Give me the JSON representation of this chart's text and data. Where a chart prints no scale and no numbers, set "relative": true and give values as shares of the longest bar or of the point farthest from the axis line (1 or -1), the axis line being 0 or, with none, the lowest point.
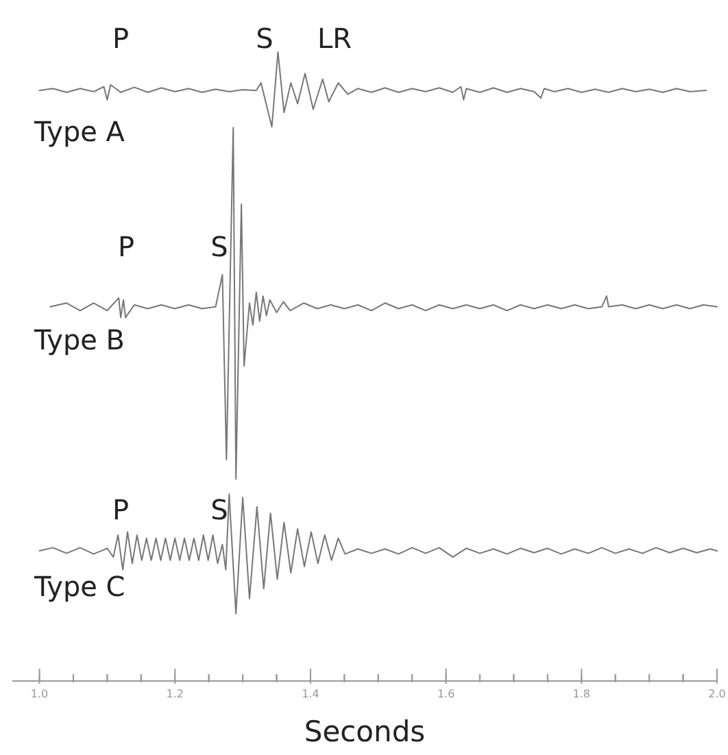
{
  "chart_data": {
    "type": "line",
    "relative": true,
    "xlim": [
      0.96,
      2.0
    ],
    "xlabel": "Seconds",
    "xticks": [
      {
        "value": 1,
        "label": "1.0"
      },
      {
        "value": 1.05,
        "label": null
      },
      {
        "value": 1.1,
        "label": null
      },
      {
        "value": 1.15,
        "label": null
      },
      1.2,
      {
        "value": 1.25,
        "label": null
      },
      {
        "value": 1.3,
        "label": null
      },
      {
        "value": 1.35,
        "label": null
      },
      1.4,
      {
        "value": 1.45,
        "label": null
      },
      {
        "value": 1.5,
        "label": null
      },
      {
        "value": 1.55,
        "label": null
      },
      1.6,
      {
        "value": 1.65,
        "label": null
      },
      {
        "value": 1.7,
        "label": null
      },
      {
        "value": 1.75,
        "label": null
      },
      1.8,
      {
        "value": 1.85,
        "label": null
      },
      {
        "value": 1.9,
        "label": null
      },
      {
        "value": 1.95,
        "label": null
      },
      {
        "value": 2,
        "label": "2.0"
      }
    ],
    "annotations": [
      "P",
      "S",
      "LR",
      "P",
      "S",
      "P",
      "S"
    ],
    "series": [
      {
        "name": "Type A",
        "color": "#777777",
        "x": [
          1.0,
          1.02,
          1.04,
          1.06,
          1.08,
          1.095,
          1.1,
          1.105,
          1.12,
          1.14,
          1.16,
          1.18,
          1.2,
          1.22,
          1.24,
          1.26,
          1.28,
          1.3,
          1.32,
          1.327,
          1.343,
          1.352,
          1.361,
          1.371,
          1.381,
          1.392,
          1.404,
          1.418,
          1.427,
          1.441,
          1.455,
          1.47,
          1.49,
          1.51,
          1.53,
          1.55,
          1.57,
          1.59,
          1.61,
          1.622,
          1.626,
          1.63,
          1.65,
          1.67,
          1.69,
          1.71,
          1.73,
          1.74,
          1.745,
          1.76,
          1.78,
          1.8,
          1.82,
          1.84,
          1.86,
          1.88,
          1.9,
          1.92,
          1.94,
          1.96,
          1.984
        ],
        "values": [
          0.939,
          0.942,
          0.936,
          0.942,
          0.937,
          0.945,
          0.924,
          0.948,
          0.936,
          0.944,
          0.936,
          0.943,
          0.937,
          0.942,
          0.936,
          0.941,
          0.937,
          0.94,
          0.939,
          0.951,
          0.881,
          1,
          0.904,
          0.951,
          0.918,
          0.966,
          0.909,
          0.957,
          0.921,
          0.951,
          0.933,
          0.942,
          0.936,
          0.943,
          0.936,
          0.942,
          0.937,
          0.943,
          0.936,
          0.945,
          0.924,
          0.942,
          0.936,
          0.943,
          0.936,
          0.942,
          0.937,
          0.927,
          0.942,
          0.937,
          0.942,
          0.936,
          0.941,
          0.936,
          0.942,
          0.937,
          0.941,
          0.936,
          0.942,
          0.937,
          0.939
        ]
      },
      {
        "name": "Type B",
        "color": "#777777",
        "x": [
          1.016,
          1.04,
          1.06,
          1.08,
          1.1,
          1.117,
          1.12,
          1.124,
          1.127,
          1.14,
          1.16,
          1.18,
          1.2,
          1.22,
          1.24,
          1.26,
          1.27,
          1.276,
          1.286,
          1.29,
          1.298,
          1.302,
          1.31,
          1.315,
          1.32,
          1.325,
          1.33,
          1.335,
          1.34,
          1.35,
          1.36,
          1.37,
          1.39,
          1.41,
          1.43,
          1.45,
          1.47,
          1.49,
          1.51,
          1.53,
          1.55,
          1.57,
          1.59,
          1.61,
          1.63,
          1.65,
          1.67,
          1.69,
          1.71,
          1.73,
          1.75,
          1.77,
          1.79,
          1.81,
          1.83,
          1.837,
          1.84,
          1.86,
          1.88,
          1.9,
          1.92,
          1.94,
          1.96,
          1.98,
          2.0
        ],
        "values": [
          0.595,
          0.601,
          0.589,
          0.601,
          0.589,
          0.609,
          0.578,
          0.606,
          0.578,
          0.598,
          0.592,
          0.598,
          0.592,
          0.598,
          0.592,
          0.595,
          0.646,
          0.352,
          0.88,
          0.321,
          0.758,
          0.501,
          0.601,
          0.566,
          0.618,
          0.572,
          0.612,
          0.581,
          0.606,
          0.586,
          0.603,
          0.589,
          0.601,
          0.592,
          0.598,
          0.592,
          0.598,
          0.589,
          0.601,
          0.592,
          0.598,
          0.589,
          0.598,
          0.592,
          0.598,
          0.592,
          0.598,
          0.589,
          0.598,
          0.592,
          0.598,
          0.592,
          0.598,
          0.592,
          0.595,
          0.612,
          0.595,
          0.598,
          0.592,
          0.598,
          0.592,
          0.598,
          0.592,
          0.598,
          0.595
        ]
      },
      {
        "name": "Type C",
        "color": "#777777",
        "x": [
          1.0,
          1.02,
          1.04,
          1.06,
          1.08,
          1.1,
          1.109,
          1.116,
          1.123,
          1.13,
          1.137,
          1.144,
          1.151,
          1.158,
          1.165,
          1.172,
          1.179,
          1.186,
          1.193,
          1.2,
          1.207,
          1.214,
          1.221,
          1.228,
          1.235,
          1.242,
          1.249,
          1.256,
          1.263,
          1.27,
          1.275,
          1.28,
          1.29,
          1.3,
          1.31,
          1.321,
          1.331,
          1.341,
          1.351,
          1.361,
          1.371,
          1.381,
          1.391,
          1.401,
          1.411,
          1.421,
          1.431,
          1.441,
          1.451,
          1.47,
          1.49,
          1.51,
          1.53,
          1.55,
          1.57,
          1.59,
          1.61,
          1.63,
          1.65,
          1.67,
          1.69,
          1.71,
          1.73,
          1.75,
          1.77,
          1.79,
          1.81,
          1.83,
          1.85,
          1.87,
          1.89,
          1.91,
          1.93,
          1.95,
          1.97,
          1.99,
          2.0
        ],
        "values": [
          0.207,
          0.212,
          0.203,
          0.212,
          0.202,
          0.211,
          0.197,
          0.232,
          0.177,
          0.237,
          0.187,
          0.232,
          0.192,
          0.227,
          0.192,
          0.227,
          0.192,
          0.227,
          0.192,
          0.227,
          0.192,
          0.227,
          0.192,
          0.227,
          0.192,
          0.232,
          0.192,
          0.232,
          0.187,
          0.217,
          0.177,
          0.297,
          0.107,
          0.292,
          0.131,
          0.277,
          0.147,
          0.267,
          0.162,
          0.252,
          0.172,
          0.242,
          0.182,
          0.237,
          0.187,
          0.232,
          0.192,
          0.227,
          0.202,
          0.21,
          0.203,
          0.21,
          0.202,
          0.212,
          0.203,
          0.212,
          0.197,
          0.211,
          0.203,
          0.21,
          0.202,
          0.211,
          0.204,
          0.211,
          0.202,
          0.21,
          0.203,
          0.212,
          0.203,
          0.21,
          0.203,
          0.212,
          0.204,
          0.211,
          0.204,
          0.21,
          0.207
        ]
      }
    ]
  }
}
